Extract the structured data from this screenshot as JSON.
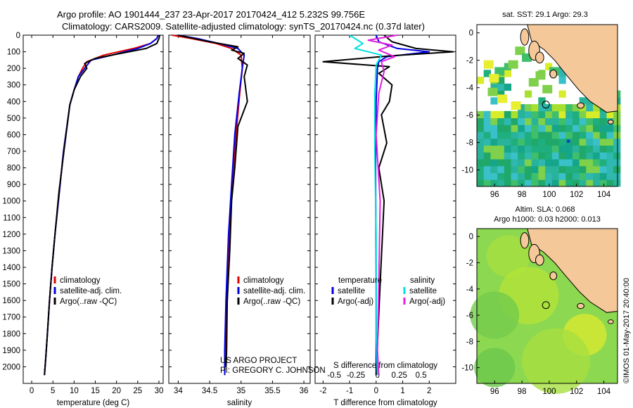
{
  "header": {
    "title_line1": "Argo profile: AO 1901444_237 23-Apr-2017 20170424_412 5.232S 99.756E",
    "title_line2": "Climatology: CARS2009. Satellite-adjusted climatology: synTS_20170424.nc (0.37d later)"
  },
  "credits": {
    "project": "US ARGO PROJECT",
    "pi": "PI: GREGORY C. JOHNSON",
    "imos": "©IMOS 01-May-2017 20:40:00"
  },
  "colors": {
    "climatology": "#e00000",
    "satellite": "#0000e0",
    "argo": "#000000",
    "sat_salinity": "#00e0e0",
    "argo_salinity": "#e020e0",
    "land": "#f5c89a"
  },
  "legends": {
    "temperature": [
      "climatology",
      "satellite-adj. clim.",
      "Argo(..raw -QC)"
    ],
    "salinity": [
      "climatology",
      "satellite-adj. clim.",
      "Argo(..raw -QC)"
    ],
    "difference": {
      "temp_head": "temperature",
      "sal_head": "salinity",
      "temp_items": [
        "satellite",
        "Argo(-adj)"
      ],
      "sal_items": [
        "satellite",
        "Argo(-adj)"
      ]
    }
  },
  "maps": {
    "sst_title": "sat. SST: 29.1  Argo: 29.3",
    "sla_title1": "Altim. SLA: 0.068",
    "sla_title2": "Argo h1000: 0.03 h2000: 0.013",
    "xticks": [
      "96",
      "98",
      "100",
      "102",
      "104"
    ],
    "yticks": [
      "0",
      "-2",
      "-4",
      "-6",
      "-8",
      "-10"
    ],
    "xtick_values": [
      96,
      98,
      100,
      102,
      104
    ],
    "ytick_values": [
      0,
      -2,
      -4,
      -6,
      -8,
      -10
    ],
    "xlim": [
      94.7,
      105.0
    ],
    "ylim": [
      -11.2,
      0.6
    ],
    "argo_position": [
      99.756,
      -5.232
    ]
  },
  "chart_data": [
    {
      "type": "line",
      "title": "",
      "xlabel": "temperature (deg C)",
      "ylabel": "",
      "xlim": [
        -2,
        31
      ],
      "ylim": [
        2100,
        0
      ],
      "xticks": [
        "0",
        "5",
        "10",
        "15",
        "20",
        "25",
        "30"
      ],
      "xtick_values": [
        0,
        5,
        10,
        15,
        20,
        25,
        30
      ],
      "yticks": [
        "0",
        "100",
        "200",
        "300",
        "400",
        "500",
        "600",
        "700",
        "800",
        "900",
        "1000",
        "1100",
        "1200",
        "1300",
        "1400",
        "1500",
        "1600",
        "1700",
        "1800",
        "1900",
        "2000"
      ],
      "ytick_values": [
        0,
        100,
        200,
        300,
        400,
        500,
        600,
        700,
        800,
        900,
        1000,
        1100,
        1200,
        1300,
        1400,
        1500,
        1600,
        1700,
        1800,
        1900,
        2000
      ],
      "series": [
        {
          "name": "climatology",
          "color": "#e00000",
          "x": [
            29.8,
            29.5,
            28,
            24,
            17,
            13,
            12,
            11,
            10,
            9,
            7.5,
            6.5,
            5.5,
            4.8,
            4.2,
            3.7,
            3.3,
            3
          ],
          "y": [
            0,
            20,
            50,
            80,
            120,
            160,
            200,
            250,
            330,
            420,
            700,
            950,
            1200,
            1400,
            1600,
            1800,
            1950,
            2050
          ]
        },
        {
          "name": "satellite-adj. clim.",
          "color": "#0000e0",
          "x": [
            29.8,
            29.5,
            28,
            25,
            19,
            14,
            12.5,
            11,
            10,
            9,
            7.5,
            6.5,
            5.5,
            4.8,
            4.2,
            3.7,
            3.3,
            3
          ],
          "y": [
            0,
            20,
            50,
            80,
            120,
            150,
            200,
            250,
            330,
            420,
            700,
            950,
            1200,
            1400,
            1600,
            1800,
            1950,
            2050
          ]
        },
        {
          "name": "Argo(..raw -QC)",
          "color": "#000000",
          "x": [
            30.2,
            30,
            29.5,
            27,
            21,
            15,
            12.5,
            13,
            11.5,
            10,
            9,
            7.6,
            6.4,
            5.5,
            4.8,
            4.2,
            3.7,
            3.3,
            3
          ],
          "y": [
            0,
            20,
            50,
            80,
            110,
            140,
            170,
            200,
            250,
            330,
            420,
            700,
            950,
            1200,
            1400,
            1600,
            1800,
            1950,
            2050
          ]
        }
      ]
    },
    {
      "type": "line",
      "title": "",
      "xlabel": "salinity",
      "ylabel": "",
      "xlim": [
        33.85,
        36.1
      ],
      "ylim": [
        2100,
        0
      ],
      "xticks": [
        "34",
        "34.5",
        "35",
        "35.5",
        "36"
      ],
      "xtick_values": [
        34,
        34.5,
        35,
        35.5,
        36
      ],
      "series": [
        {
          "name": "climatology",
          "color": "#e00000",
          "x": [
            33.9,
            34.2,
            34.6,
            34.85,
            35.0,
            35.02,
            34.98,
            34.92,
            34.86,
            34.82,
            34.78,
            34.75,
            34.74
          ],
          "y": [
            0,
            20,
            50,
            80,
            120,
            200,
            350,
            600,
            900,
            1200,
            1600,
            1900,
            2050
          ]
        },
        {
          "name": "satellite-adj. clim.",
          "color": "#0000e0",
          "x": [
            34.0,
            34.3,
            34.65,
            34.95,
            35.05,
            35.02,
            34.97,
            34.9,
            34.85,
            34.8,
            34.76,
            34.74,
            34.74
          ],
          "y": [
            0,
            20,
            50,
            80,
            120,
            200,
            350,
            600,
            900,
            1200,
            1600,
            1900,
            2050
          ]
        },
        {
          "name": "Argo(..raw -QC)",
          "color": "#000000",
          "x": [
            34.0,
            34.5,
            34.95,
            34.85,
            35.05,
            34.95,
            35.1,
            35.05,
            35.1,
            34.95,
            34.9,
            34.85,
            34.82,
            34.78,
            34.77,
            34.76
          ],
          "y": [
            0,
            40,
            70,
            90,
            110,
            140,
            180,
            250,
            400,
            550,
            800,
            1000,
            1300,
            1600,
            1900,
            2000
          ]
        }
      ]
    },
    {
      "type": "line",
      "title": "",
      "xlabel": "T difference from climatology",
      "xlabel_top": "S difference from climatology",
      "ylabel": "",
      "xlim": [
        -2.3,
        3.0
      ],
      "ylim": [
        2100,
        0
      ],
      "xticks": [
        "-2",
        "-1",
        "0",
        "1",
        "2"
      ],
      "xtick_values": [
        -2,
        -1,
        0,
        1,
        2
      ],
      "xticks_sal": [
        "-0.5",
        "-0.25",
        "0",
        "0.25",
        "0.5"
      ],
      "xtick_sal_values": [
        -0.5,
        -0.25,
        0,
        0.25,
        0.5
      ],
      "series": [
        {
          "name": "temperature satellite",
          "color": "#0000e0",
          "x": [
            0,
            0.1,
            0.8,
            2.0,
            0.4,
            0.1,
            0.05,
            0.0,
            -0.02,
            0.0,
            0.0
          ],
          "y": [
            0,
            40,
            80,
            100,
            130,
            160,
            200,
            400,
            800,
            1500,
            2050
          ]
        },
        {
          "name": "temperature Argo(-adj)",
          "color": "#000000",
          "x": [
            0.3,
            0.6,
            1.5,
            2.9,
            0.5,
            -2.0,
            0.5,
            0.1,
            0.6,
            0.5,
            0.2,
            0.4,
            0.1,
            0.3,
            0.15,
            0.0
          ],
          "y": [
            0,
            40,
            80,
            100,
            125,
            160,
            190,
            230,
            300,
            400,
            480,
            650,
            800,
            1000,
            1500,
            2050
          ]
        },
        {
          "name": "salinity satellite",
          "color": "#00e0e0",
          "x": [
            -1.0,
            -0.5,
            -0.8,
            0.2,
            0.0,
            -0.05,
            -0.05,
            0.0,
            0.0,
            0.05
          ],
          "y": [
            0,
            50,
            80,
            120,
            180,
            350,
            700,
            1200,
            1800,
            2050
          ]
        },
        {
          "name": "salinity Argo(-adj)",
          "color": "#e020e0",
          "x": [
            0.8,
            -0.3,
            0.6,
            0.1,
            0.7,
            0.2,
            0.3,
            0.1,
            0.0,
            0.15,
            0.1,
            0.05,
            0.1
          ],
          "y": [
            0,
            30,
            60,
            90,
            130,
            160,
            220,
            350,
            600,
            1000,
            1500,
            1900,
            2050
          ]
        }
      ]
    }
  ]
}
